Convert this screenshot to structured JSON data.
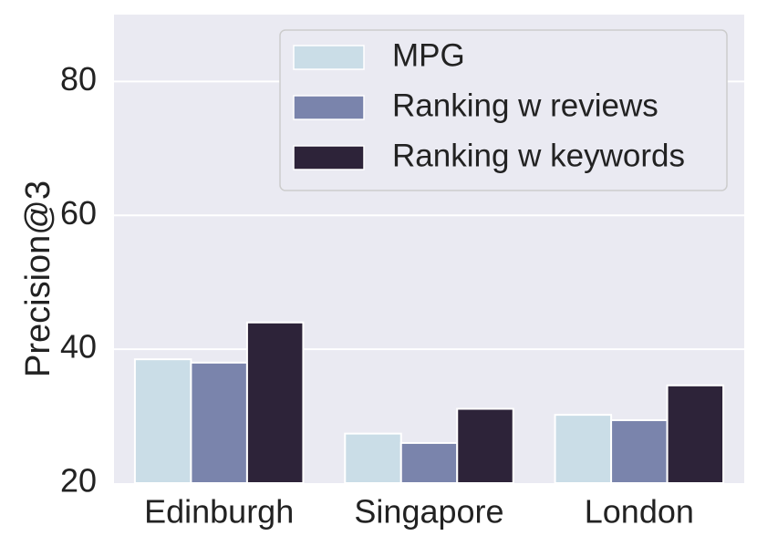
{
  "chart_data": {
    "type": "bar",
    "ylabel": "Precision@3",
    "xlabel": "",
    "categories": [
      "Edinburgh",
      "Singapore",
      "London"
    ],
    "series": [
      {
        "name": "MPG",
        "values": [
          38.5,
          27.4,
          30.2
        ],
        "color": "#cadde7"
      },
      {
        "name": "Ranking w reviews",
        "values": [
          38.0,
          26.0,
          29.4
        ],
        "color": "#7a84ac"
      },
      {
        "name": "Ranking w keywords",
        "values": [
          44.0,
          31.1,
          34.6
        ],
        "color": "#2d2339"
      }
    ],
    "ylim": [
      20,
      90
    ],
    "yticks": [
      "20",
      "40",
      "60",
      "80"
    ],
    "grid": true,
    "legend_position": "top-right",
    "colors": {
      "plot_background": "#eaeaf2",
      "grid": "#ffffff"
    }
  }
}
